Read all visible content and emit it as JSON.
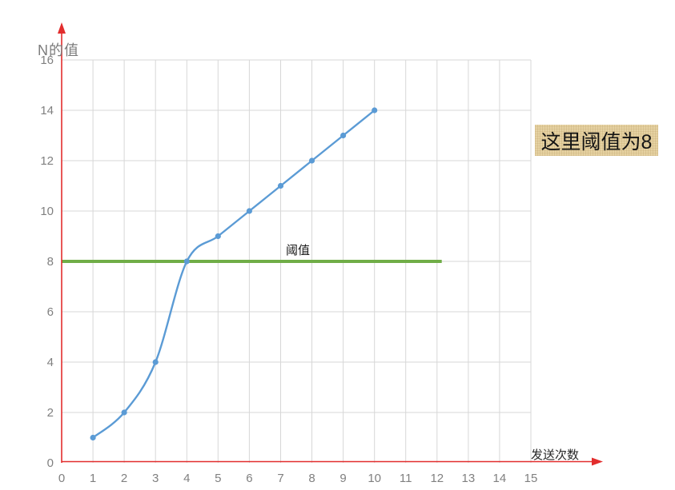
{
  "chart_data": {
    "type": "line",
    "x": [
      1,
      2,
      3,
      4,
      5,
      6,
      7,
      8,
      9,
      10
    ],
    "y": [
      1,
      2,
      4,
      8,
      9,
      10,
      11,
      12,
      13,
      14
    ],
    "title": "",
    "xlabel": "发送次数",
    "ylabel": "N的值",
    "xlim": [
      0,
      15
    ],
    "ylim": [
      0,
      16
    ],
    "x_ticks": [
      0,
      1,
      2,
      3,
      4,
      5,
      6,
      7,
      8,
      9,
      10,
      11,
      12,
      13,
      14,
      15
    ],
    "y_ticks": [
      0,
      2,
      4,
      6,
      8,
      10,
      12,
      14,
      16
    ],
    "grid": true,
    "legend": "none",
    "line_color": "#5b9bd5",
    "marker_color": "#5b9bd5",
    "axis_color": "#e22d2d",
    "grid_color": "#d7d7d7",
    "tick_color": "#808080",
    "threshold": {
      "value": 8,
      "label": "阈值",
      "color": "#70ad47",
      "x_start": 0,
      "x_end": 12.15
    },
    "annotation": {
      "text": "这里阈值为8",
      "bg": "#e6d2a2"
    }
  }
}
